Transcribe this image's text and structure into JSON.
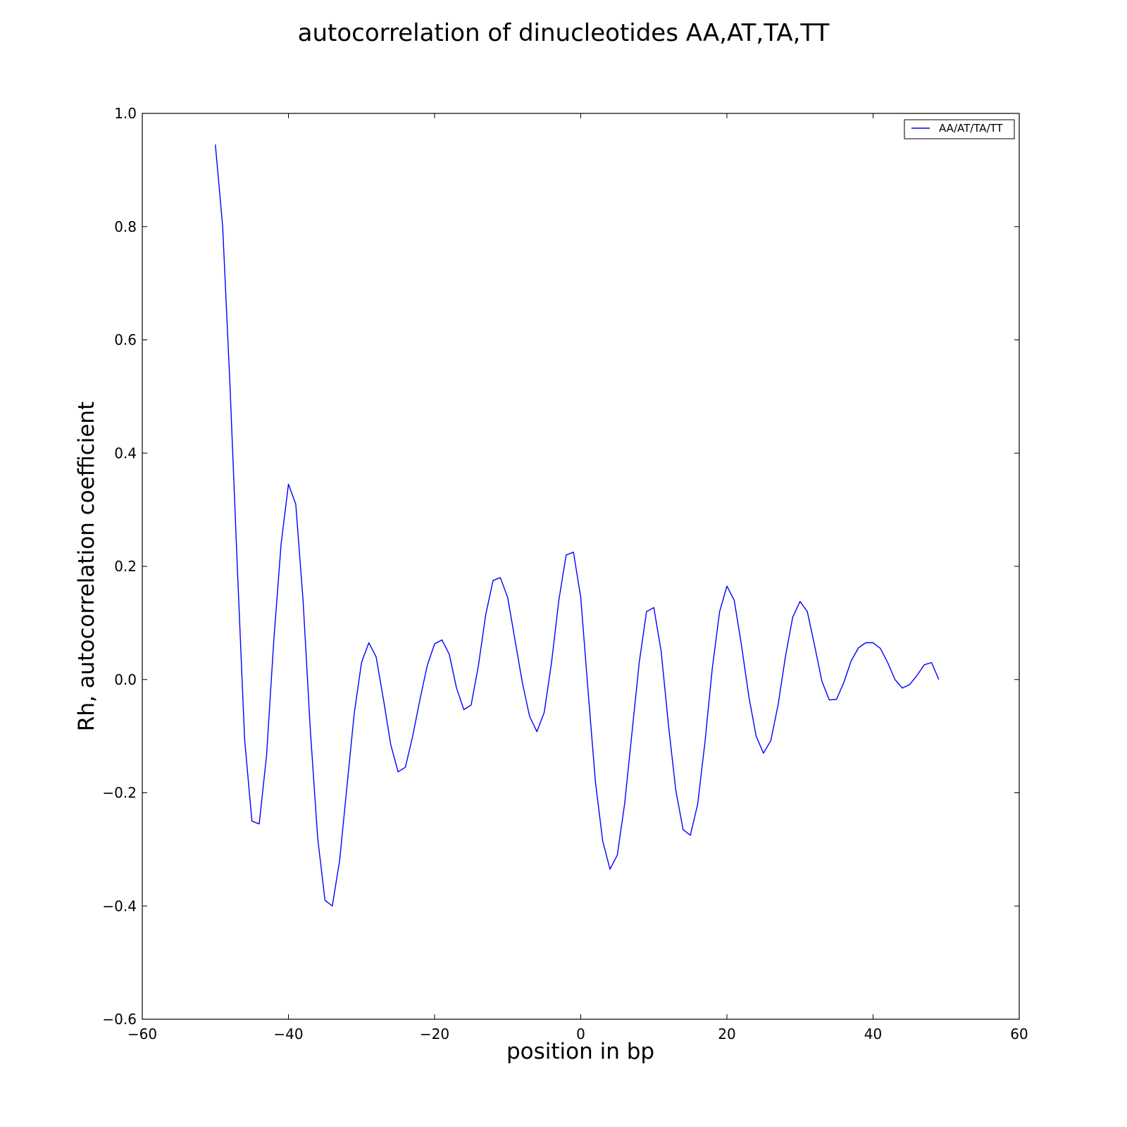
{
  "chart_data": {
    "type": "line",
    "title": "autocorrelation of dinucleotides AA,AT,TA,TT",
    "xlabel": "position in bp",
    "ylabel": "Rh, autocorrelation coefficient",
    "xlim": [
      -60,
      60
    ],
    "ylim": [
      -0.6,
      1.0
    ],
    "xticks": [
      -60,
      -40,
      -20,
      0,
      20,
      40,
      60
    ],
    "xtick_labels": [
      "−60",
      "−40",
      "−20",
      "0",
      "20",
      "40",
      "60"
    ],
    "yticks": [
      -0.6,
      -0.4,
      -0.2,
      0.0,
      0.2,
      0.4,
      0.6,
      0.8,
      1.0
    ],
    "ytick_labels": [
      "−0.6",
      "−0.4",
      "−0.2",
      "0.0",
      "0.2",
      "0.4",
      "0.6",
      "0.8",
      "1.0"
    ],
    "grid": false,
    "legend_position": "top-right",
    "series": [
      {
        "name": "AA/AT/TA/TT",
        "color": "#0000ff",
        "x": [
          -50,
          -49,
          -48,
          -47,
          -46,
          -45,
          -44,
          -43,
          -42,
          -41,
          -40,
          -39,
          -38,
          -37,
          -36,
          -35,
          -34,
          -33,
          -32,
          -31,
          -30,
          -29,
          -28,
          -27,
          -26,
          -25,
          -24,
          -23,
          -22,
          -21,
          -20,
          -19,
          -18,
          -17,
          -16,
          -15,
          -14,
          -13,
          -12,
          -11,
          -10,
          -9,
          -8,
          -7,
          -6,
          -5,
          -4,
          -3,
          -2,
          -1,
          0,
          1,
          2,
          3,
          4,
          5,
          6,
          7,
          8,
          9,
          10,
          11,
          12,
          13,
          14,
          15,
          16,
          17,
          18,
          19,
          20,
          21,
          22,
          23,
          24,
          25,
          26,
          27,
          28,
          29,
          30,
          31,
          32,
          33,
          34,
          35,
          36,
          37,
          38,
          39,
          40,
          41,
          42,
          43,
          44,
          45,
          46,
          47,
          48,
          49
        ],
        "y": [
          0.945,
          0.8,
          0.52,
          0.2,
          -0.105,
          -0.25,
          -0.255,
          -0.135,
          0.07,
          0.24,
          0.345,
          0.31,
          0.14,
          -0.09,
          -0.28,
          -0.39,
          -0.4,
          -0.32,
          -0.19,
          -0.06,
          0.03,
          0.065,
          0.04,
          -0.035,
          -0.115,
          -0.163,
          -0.155,
          -0.1,
          -0.035,
          0.025,
          0.063,
          0.07,
          0.045,
          -0.015,
          -0.053,
          -0.045,
          0.025,
          0.115,
          0.175,
          0.18,
          0.145,
          0.07,
          -0.005,
          -0.065,
          -0.092,
          -0.058,
          0.03,
          0.14,
          0.22,
          0.225,
          0.145,
          -0.02,
          -0.18,
          -0.285,
          -0.335,
          -0.31,
          -0.22,
          -0.095,
          0.03,
          0.12,
          0.127,
          0.05,
          -0.08,
          -0.195,
          -0.265,
          -0.275,
          -0.22,
          -0.11,
          0.02,
          0.12,
          0.165,
          0.14,
          0.06,
          -0.03,
          -0.1,
          -0.13,
          -0.108,
          -0.045,
          0.04,
          0.11,
          0.138,
          0.12,
          0.06,
          -0.003,
          -0.036,
          -0.035,
          -0.005,
          0.033,
          0.056,
          0.065,
          0.065,
          0.055,
          0.03,
          0.0,
          -0.015,
          -0.009,
          0.007,
          0.026,
          0.03,
          0.0
        ]
      }
    ]
  }
}
